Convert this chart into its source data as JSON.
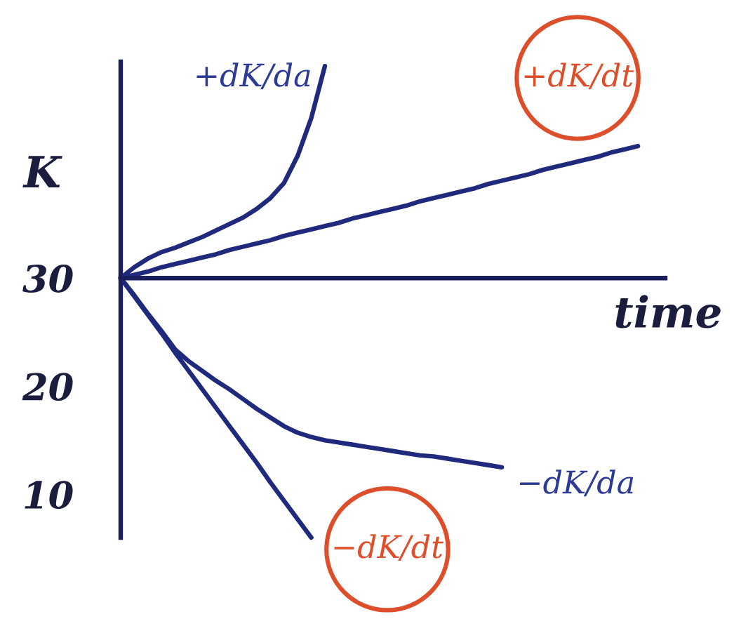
{
  "chart_data": {
    "type": "line",
    "xlabel": "time",
    "ylabel": "K",
    "tick_labels": "y",
    "categories": [
      null,
      null,
      null,
      null,
      null,
      null,
      null,
      null,
      null,
      null,
      null,
      null,
      null,
      null,
      null,
      null,
      null,
      null,
      null,
      null,
      null,
      null,
      null,
      null,
      null,
      null,
      null,
      null,
      null,
      null,
      null,
      null,
      null,
      null,
      null,
      null,
      null,
      null,
      null,
      null,
      null
    ],
    "ylim": [
      6,
      50
    ],
    "yticks": [
      10,
      20,
      30
    ],
    "ref_lines": [
      {
        "axis": "y",
        "value": 30,
        "color": "#1a1f5c"
      }
    ],
    "series": [
      {
        "name": "+dK/da",
        "color": "#1f2a7c",
        "values": [
          30,
          31.0,
          31.8,
          32.4,
          32.8,
          33.3,
          33.8,
          34.4,
          35.0,
          35.6,
          36.4,
          37.4,
          38.8,
          41.3,
          44.8,
          49.6,
          null,
          null,
          null,
          null,
          null,
          null,
          null,
          null,
          null,
          null,
          null,
          null,
          null,
          null,
          null,
          null,
          null,
          null,
          null,
          null,
          null,
          null,
          null,
          null,
          null
        ]
      },
      {
        "name": "+dK/dt",
        "color": "#1f2a7c",
        "values": [
          30,
          30.3,
          30.6,
          31.0,
          31.3,
          31.6,
          31.9,
          32.2,
          32.6,
          32.9,
          33.2,
          33.5,
          33.9,
          34.2,
          34.5,
          34.8,
          35.1,
          35.5,
          35.8,
          36.1,
          36.4,
          36.7,
          37.1,
          37.4,
          37.7,
          38.0,
          38.3,
          38.7,
          39.0,
          39.3,
          39.6,
          40.0,
          40.3,
          40.6,
          40.9,
          41.2,
          41.6,
          41.9,
          42.2,
          null,
          null
        ]
      },
      {
        "name": "−dK/da",
        "color": "#1f2a7c",
        "values": [
          30,
          28.4,
          26.7,
          25.1,
          23.4,
          22.3,
          21.4,
          20.5,
          19.7,
          18.8,
          17.9,
          17.1,
          16.3,
          15.7,
          15.3,
          15.0,
          14.8,
          14.6,
          14.4,
          14.2,
          14.0,
          13.8,
          13.6,
          13.5,
          13.3,
          13.1,
          12.9,
          12.7,
          12.5,
          null,
          null,
          null,
          null,
          null,
          null,
          null,
          null,
          null,
          null,
          null,
          null
        ]
      },
      {
        "name": "−dK/dt",
        "color": "#1f2a7c",
        "values": [
          30,
          28.3,
          26.6,
          24.9,
          23.1,
          21.4,
          19.7,
          18.0,
          16.3,
          14.6,
          12.9,
          11.1,
          9.4,
          7.7,
          6.0,
          null,
          null,
          null,
          null,
          null,
          null,
          null,
          null,
          null,
          null,
          null,
          null,
          null,
          null,
          null,
          null,
          null,
          null,
          null,
          null,
          null,
          null,
          null,
          null,
          null,
          null
        ]
      }
    ]
  }
}
